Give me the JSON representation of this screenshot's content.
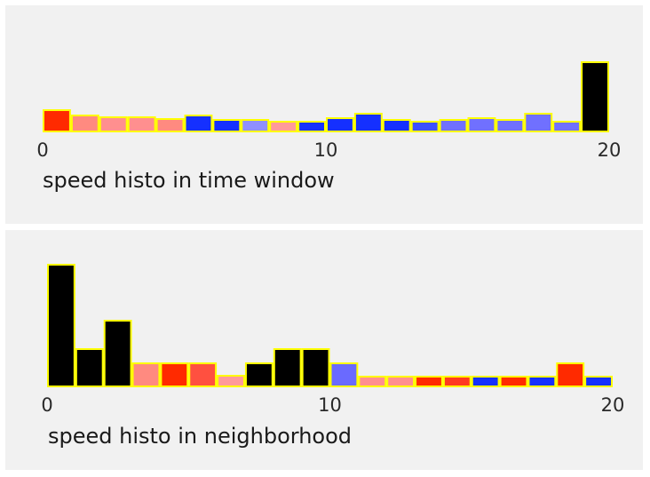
{
  "chart_data": [
    {
      "type": "bar",
      "title": "speed histo in time window",
      "xlim": [
        0,
        20
      ],
      "x_ticks": [
        "0",
        "10",
        "20"
      ],
      "bar_edge_color": "#ffff00",
      "bars": [
        {
          "x": 0,
          "value": 24,
          "color": "#ff2a00"
        },
        {
          "x": 1,
          "value": 18,
          "color": "#ff8a80"
        },
        {
          "x": 2,
          "value": 16,
          "color": "#ff8f8f"
        },
        {
          "x": 3,
          "value": 16,
          "color": "#ff8f8f"
        },
        {
          "x": 4,
          "value": 14,
          "color": "#ff8a80"
        },
        {
          "x": 5,
          "value": 18,
          "color": "#1530ff"
        },
        {
          "x": 6,
          "value": 13,
          "color": "#1530ff"
        },
        {
          "x": 7,
          "value": 13,
          "color": "#8f8fff"
        },
        {
          "x": 8,
          "value": 11,
          "color": "#ff9a9a"
        },
        {
          "x": 9,
          "value": 11,
          "color": "#1530ff"
        },
        {
          "x": 10,
          "value": 15,
          "color": "#1530ff"
        },
        {
          "x": 11,
          "value": 20,
          "color": "#1530ff"
        },
        {
          "x": 12,
          "value": 13,
          "color": "#1530ff"
        },
        {
          "x": 13,
          "value": 11,
          "color": "#3d50ff"
        },
        {
          "x": 14,
          "value": 13,
          "color": "#7070ff"
        },
        {
          "x": 15,
          "value": 15,
          "color": "#7070ff"
        },
        {
          "x": 16,
          "value": 13,
          "color": "#7070ff"
        },
        {
          "x": 17,
          "value": 20,
          "color": "#7070ff"
        },
        {
          "x": 18,
          "value": 11,
          "color": "#7070ff"
        },
        {
          "x": 19,
          "value": 78,
          "color": "#000000"
        }
      ],
      "ylim": [
        0,
        80
      ]
    },
    {
      "type": "bar",
      "title": "speed histo in neighborhood",
      "xlim": [
        0,
        20
      ],
      "x_ticks": [
        "0",
        "10",
        "20"
      ],
      "bar_edge_color": "#ffff00",
      "bars": [
        {
          "x": 0,
          "value": 137,
          "color": "#000000"
        },
        {
          "x": 1,
          "value": 42,
          "color": "#000000"
        },
        {
          "x": 2,
          "value": 74,
          "color": "#000000"
        },
        {
          "x": 3,
          "value": 26,
          "color": "#ff8a80"
        },
        {
          "x": 4,
          "value": 26,
          "color": "#ff2a00"
        },
        {
          "x": 5,
          "value": 26,
          "color": "#ff5040"
        },
        {
          "x": 6,
          "value": 12,
          "color": "#ff9a9a"
        },
        {
          "x": 7,
          "value": 26,
          "color": "#000000"
        },
        {
          "x": 8,
          "value": 42,
          "color": "#000000"
        },
        {
          "x": 9,
          "value": 42,
          "color": "#000000"
        },
        {
          "x": 10,
          "value": 26,
          "color": "#6a6aff"
        },
        {
          "x": 11,
          "value": 11,
          "color": "#ff8f8f"
        },
        {
          "x": 12,
          "value": 11,
          "color": "#ff8f8f"
        },
        {
          "x": 13,
          "value": 11,
          "color": "#ff2a00"
        },
        {
          "x": 14,
          "value": 11,
          "color": "#ff3a20"
        },
        {
          "x": 15,
          "value": 11,
          "color": "#1530ff"
        },
        {
          "x": 16,
          "value": 11,
          "color": "#ff2a00"
        },
        {
          "x": 17,
          "value": 11,
          "color": "#1530ff"
        },
        {
          "x": 18,
          "value": 26,
          "color": "#ff2a00"
        },
        {
          "x": 19,
          "value": 11,
          "color": "#1530ff"
        }
      ],
      "ylim": [
        0,
        140
      ]
    }
  ]
}
